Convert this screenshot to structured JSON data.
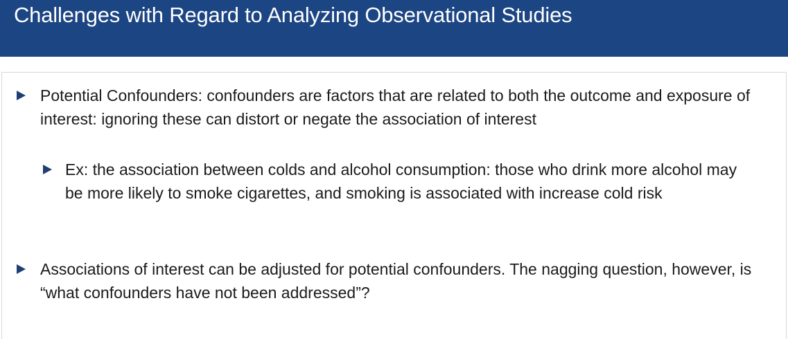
{
  "slide": {
    "title": "Challenges with Regard to Analyzing Observational Studies",
    "bullets": [
      {
        "level": 1,
        "icon": "triangle-bullet-icon",
        "text": "Potential Confounders:  confounders are factors that are related to both the outcome and exposure of interest: ignoring these can distort or negate the association of interest"
      },
      {
        "level": 2,
        "icon": "triangle-bullet-icon",
        "text": "Ex: the association between colds and alcohol consumption: those who drink more alcohol may be more likely to smoke cigarettes, and smoking is associated with increase cold risk"
      },
      {
        "level": 1,
        "icon": "triangle-bullet-icon",
        "text": "Associations of interest can be adjusted for potential confounders.  The nagging question, however, is “what confounders have not been addressed”?"
      }
    ]
  },
  "colors": {
    "title_bar": "#1c4583",
    "title_text": "#ffffff",
    "bullet_marker": "#1f3f73",
    "body_text": "#1a1a1a"
  }
}
